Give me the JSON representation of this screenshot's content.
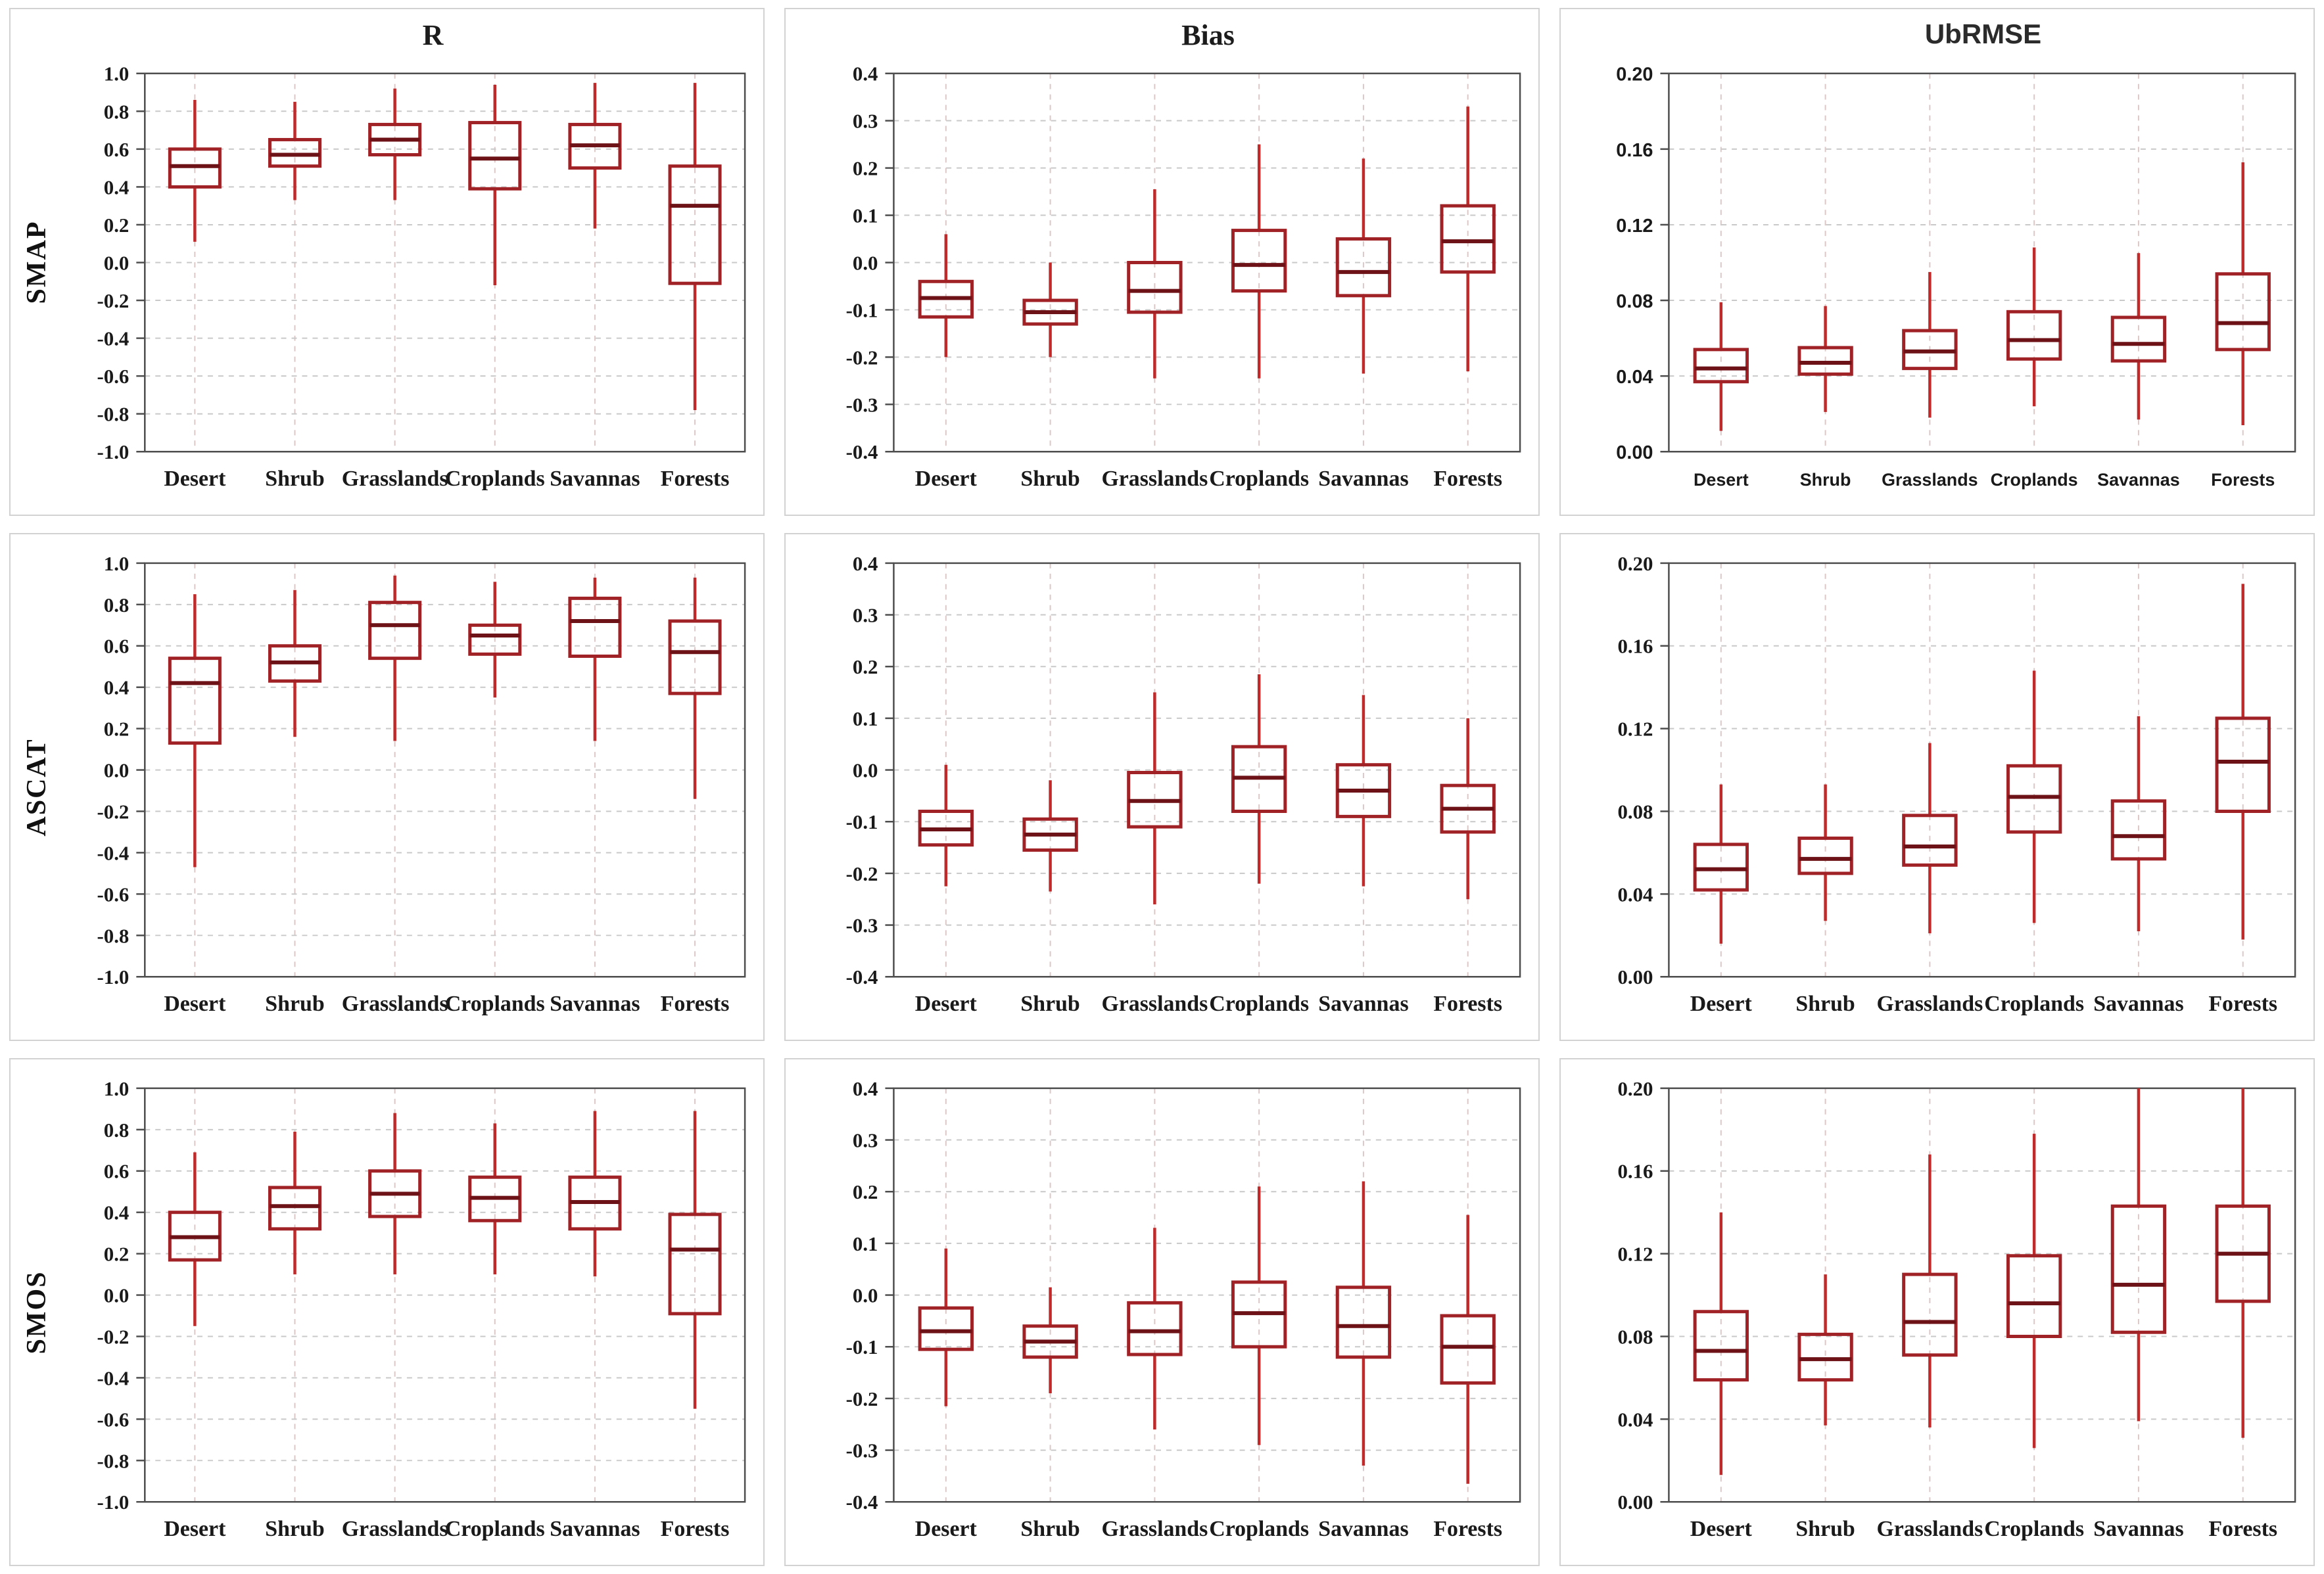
{
  "chart_data": {
    "type": "boxplot_grid",
    "rows": [
      "SMAP",
      "ASCAT",
      "SMOS"
    ],
    "cols": [
      "R",
      "Bias",
      "UbRMSE"
    ],
    "categories": [
      "Desert",
      "Shrub",
      "Grasslands",
      "Croplands",
      "Savannas",
      "Forests"
    ],
    "grid": "dashed horizontal and vertical gridlines",
    "legend": "none",
    "box_format": [
      "whisker_low",
      "q1",
      "median",
      "q3",
      "whisker_high"
    ],
    "axes": {
      "R": {
        "min": -1.0,
        "max": 1.0,
        "tick_values": [
          1.0,
          0.8,
          0.6,
          0.4,
          0.2,
          0.0,
          -0.2,
          -0.4,
          -0.6,
          -0.8,
          -1.0
        ],
        "tick_labels": [
          "1.0",
          "0.8",
          "0.6",
          "0.4",
          "0.2",
          "0.0",
          "-0.2",
          "-0.4",
          "-0.6",
          "-0.8",
          "-1.0"
        ]
      },
      "Bias": {
        "min": -0.4,
        "max": 0.4,
        "tick_values": [
          0.4,
          0.3,
          0.2,
          0.1,
          0.0,
          -0.1,
          -0.2,
          -0.3,
          -0.4
        ],
        "tick_labels": [
          "0.4",
          "0.3",
          "0.2",
          "0.1",
          "0.0",
          "-0.1",
          "-0.2",
          "-0.3",
          "-0.4"
        ]
      },
      "UbRMSE": {
        "min": 0.0,
        "max": 0.2,
        "tick_values": [
          0.2,
          0.16,
          0.12,
          0.08,
          0.04,
          0.0
        ],
        "tick_labels": [
          "0.20",
          "0.16",
          "0.12",
          "0.08",
          "0.04",
          "0.00"
        ]
      }
    },
    "panels": [
      {
        "row": 0,
        "col": 0,
        "row_label": "SMAP",
        "col_label": "R",
        "font": "serif",
        "boxes": [
          [
            0.11,
            0.4,
            0.51,
            0.6,
            0.86
          ],
          [
            0.33,
            0.51,
            0.57,
            0.65,
            0.85
          ],
          [
            0.33,
            0.57,
            0.65,
            0.73,
            0.92
          ],
          [
            -0.12,
            0.39,
            0.55,
            0.74,
            0.94
          ],
          [
            0.18,
            0.5,
            0.62,
            0.73,
            0.95
          ],
          [
            -0.78,
            -0.11,
            0.3,
            0.51,
            0.95
          ]
        ]
      },
      {
        "row": 0,
        "col": 1,
        "row_label": "SMAP",
        "col_label": "Bias",
        "font": "serif",
        "boxes": [
          [
            -0.2,
            -0.115,
            -0.075,
            -0.04,
            0.06
          ],
          [
            -0.2,
            -0.13,
            -0.105,
            -0.08,
            0.0
          ],
          [
            -0.245,
            -0.105,
            -0.06,
            0.0,
            0.155
          ],
          [
            -0.245,
            -0.06,
            -0.005,
            0.068,
            0.25
          ],
          [
            -0.235,
            -0.07,
            -0.02,
            0.05,
            0.22
          ],
          [
            -0.23,
            -0.02,
            0.045,
            0.12,
            0.33
          ]
        ]
      },
      {
        "row": 0,
        "col": 2,
        "row_label": "SMAP",
        "col_label": "UbRMSE",
        "font": "sans",
        "boxes": [
          [
            0.011,
            0.037,
            0.044,
            0.054,
            0.079
          ],
          [
            0.021,
            0.041,
            0.047,
            0.055,
            0.077
          ],
          [
            0.018,
            0.044,
            0.053,
            0.064,
            0.095
          ],
          [
            0.024,
            0.049,
            0.059,
            0.074,
            0.108
          ],
          [
            0.017,
            0.048,
            0.057,
            0.071,
            0.105
          ],
          [
            0.014,
            0.054,
            0.068,
            0.094,
            0.153
          ]
        ]
      },
      {
        "row": 1,
        "col": 0,
        "row_label": "ASCAT",
        "col_label": "R",
        "font": "serif",
        "boxes": [
          [
            -0.47,
            0.13,
            0.42,
            0.54,
            0.85
          ],
          [
            0.16,
            0.43,
            0.52,
            0.6,
            0.87
          ],
          [
            0.14,
            0.54,
            0.7,
            0.81,
            0.94
          ],
          [
            0.35,
            0.56,
            0.65,
            0.7,
            0.91
          ],
          [
            0.14,
            0.55,
            0.72,
            0.83,
            0.93
          ],
          [
            -0.14,
            0.37,
            0.57,
            0.72,
            0.93
          ]
        ]
      },
      {
        "row": 1,
        "col": 1,
        "row_label": "ASCAT",
        "col_label": "Bias",
        "font": "serif",
        "boxes": [
          [
            -0.225,
            -0.145,
            -0.115,
            -0.08,
            0.01
          ],
          [
            -0.235,
            -0.155,
            -0.125,
            -0.095,
            -0.02
          ],
          [
            -0.26,
            -0.11,
            -0.06,
            -0.005,
            0.15
          ],
          [
            -0.22,
            -0.08,
            -0.015,
            0.045,
            0.185
          ],
          [
            -0.225,
            -0.09,
            -0.04,
            0.01,
            0.145
          ],
          [
            -0.25,
            -0.12,
            -0.075,
            -0.03,
            0.1
          ]
        ]
      },
      {
        "row": 1,
        "col": 2,
        "row_label": "ASCAT",
        "col_label": "UbRMSE",
        "font": "serif",
        "boxes": [
          [
            0.016,
            0.042,
            0.052,
            0.064,
            0.093
          ],
          [
            0.027,
            0.05,
            0.057,
            0.067,
            0.093
          ],
          [
            0.021,
            0.054,
            0.063,
            0.078,
            0.113
          ],
          [
            0.026,
            0.07,
            0.087,
            0.102,
            0.148
          ],
          [
            0.022,
            0.057,
            0.068,
            0.085,
            0.126
          ],
          [
            0.018,
            0.08,
            0.104,
            0.125,
            0.19
          ]
        ]
      },
      {
        "row": 2,
        "col": 0,
        "row_label": "SMOS",
        "col_label": "R",
        "font": "serif",
        "boxes": [
          [
            -0.15,
            0.17,
            0.28,
            0.4,
            0.69
          ],
          [
            0.1,
            0.32,
            0.43,
            0.52,
            0.79
          ],
          [
            0.1,
            0.38,
            0.49,
            0.6,
            0.88
          ],
          [
            0.1,
            0.36,
            0.47,
            0.57,
            0.83
          ],
          [
            0.09,
            0.32,
            0.45,
            0.57,
            0.89
          ],
          [
            -0.55,
            -0.09,
            0.22,
            0.39,
            0.89
          ]
        ]
      },
      {
        "row": 2,
        "col": 1,
        "row_label": "SMOS",
        "col_label": "Bias",
        "font": "serif",
        "boxes": [
          [
            -0.215,
            -0.105,
            -0.07,
            -0.025,
            0.09
          ],
          [
            -0.19,
            -0.12,
            -0.09,
            -0.06,
            0.015
          ],
          [
            -0.26,
            -0.115,
            -0.07,
            -0.015,
            0.13
          ],
          [
            -0.29,
            -0.1,
            -0.035,
            0.025,
            0.21
          ],
          [
            -0.33,
            -0.12,
            -0.06,
            0.015,
            0.22
          ],
          [
            -0.365,
            -0.17,
            -0.1,
            -0.04,
            0.155
          ]
        ]
      },
      {
        "row": 2,
        "col": 2,
        "row_label": "SMOS",
        "col_label": "UbRMSE",
        "font": "serif",
        "boxes": [
          [
            0.013,
            0.059,
            0.073,
            0.092,
            0.14
          ],
          [
            0.037,
            0.059,
            0.069,
            0.081,
            0.11
          ],
          [
            0.036,
            0.071,
            0.087,
            0.11,
            0.168
          ],
          [
            0.026,
            0.08,
            0.096,
            0.119,
            0.178
          ],
          [
            0.039,
            0.082,
            0.105,
            0.143,
            0.2
          ],
          [
            0.031,
            0.097,
            0.12,
            0.143,
            0.2
          ]
        ]
      }
    ],
    "style": {
      "box_color": "#a02226",
      "whisker_color": "#c12a2a",
      "median_color": "#6d1216",
      "frame_color": "#4d4d4d",
      "h_grid_color": "#c9c9c9",
      "v_grid_color": "#ddc8c8",
      "text_color": "#1a1a1a",
      "tile_border_color": "#d2d2d2"
    }
  }
}
